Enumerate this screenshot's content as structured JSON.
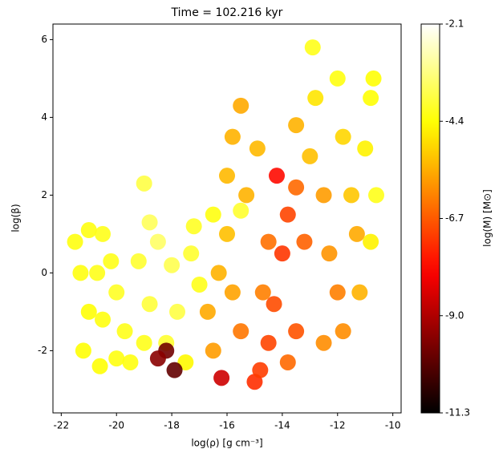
{
  "chart_data": {
    "type": "scatter",
    "title": "Time = 102.216 kyr",
    "x_label": "log(ρ) [g cm⁻³]",
    "y_label": "log(β)",
    "colorbar_label": "log(M) [M⊙]",
    "colormap": "hot",
    "xlim": [
      -22.3,
      -9.7
    ],
    "ylim": [
      -3.6,
      6.4
    ],
    "xticks": [
      -22,
      -20,
      -18,
      -16,
      -14,
      -12,
      -10
    ],
    "yticks": [
      -2,
      0,
      2,
      4,
      6
    ],
    "clim": [
      -11.3,
      -2.1
    ],
    "cticks": [
      -2.1,
      -4.4,
      -6.7,
      {
        "value": -9.0,
        "label": "-9.0"
      },
      -11.3
    ],
    "x": [
      -21.5,
      -21.0,
      -20.5,
      -21.3,
      -20.7,
      -20.2,
      -21.0,
      -20.5,
      -21.2,
      -20.6,
      -20.0,
      -19.7,
      -20.0,
      -19.5,
      -19.0,
      -18.8,
      -19.2,
      -18.5,
      -18.8,
      -18.0,
      -17.8,
      -18.2,
      -17.5,
      -17.3,
      -17.0,
      -17.2,
      -19.0,
      -16.5,
      -15.5,
      -18.2,
      -17.9,
      -18.5,
      -16.7,
      -16.5,
      -16.3,
      -16.0,
      -16.0,
      -15.8,
      -15.5,
      -15.8,
      -15.5,
      -16.2,
      -15.3,
      -14.9,
      -14.7,
      -15.0,
      -14.5,
      -14.3,
      -14.0,
      -13.8,
      -14.2,
      -13.5,
      -14.8,
      -13.2,
      -13.5,
      -14.5,
      -13.8,
      -13.0,
      -12.8,
      -12.5,
      -12.3,
      -12.0,
      -12.5,
      -11.8,
      -11.5,
      -11.3,
      -11.0,
      -10.8,
      -10.6,
      -10.7,
      -11.8,
      -11.2,
      -10.8,
      -12.9,
      -13.5,
      -12.0
    ],
    "y": [
      0.8,
      1.1,
      1.0,
      0.0,
      0.0,
      0.3,
      -1.0,
      -1.2,
      -2.0,
      -2.4,
      -2.2,
      -1.5,
      -0.5,
      -2.3,
      -1.8,
      -0.8,
      0.3,
      0.8,
      1.3,
      0.2,
      -1.0,
      -1.8,
      -2.3,
      0.5,
      -0.3,
      1.2,
      2.3,
      1.5,
      1.6,
      -2.0,
      -2.5,
      -2.2,
      -1.0,
      -2.0,
      0.0,
      1.0,
      2.5,
      3.5,
      4.3,
      -0.5,
      -1.5,
      -2.7,
      2.0,
      3.2,
      -0.5,
      -2.8,
      -1.8,
      -0.8,
      0.5,
      1.5,
      2.5,
      -1.5,
      -2.5,
      0.8,
      2.2,
      0.8,
      -2.3,
      3.0,
      4.5,
      2.0,
      0.5,
      -0.5,
      -1.8,
      3.5,
      2.0,
      1.0,
      3.2,
      4.5,
      2.0,
      5.0,
      -1.5,
      -0.5,
      0.8,
      5.8,
      3.8,
      5.0
    ],
    "c": [
      -4.3,
      -4.3,
      -4.2,
      -4.3,
      -4.2,
      -4.2,
      -4.4,
      -4.3,
      -4.4,
      -4.4,
      -4.3,
      -4.2,
      -4.1,
      -4.3,
      -4.2,
      -3.9,
      -4.0,
      -3.5,
      -3.6,
      -3.7,
      -3.8,
      -4.0,
      -4.5,
      -4.0,
      -4.2,
      -4.1,
      -3.8,
      -4.3,
      -4.0,
      -9.8,
      -10.0,
      -9.5,
      -5.6,
      -5.8,
      -5.5,
      -5.3,
      -5.4,
      -5.5,
      -5.6,
      -5.7,
      -6.3,
      -8.6,
      -5.5,
      -5.4,
      -6.2,
      -7.3,
      -7.0,
      -6.9,
      -7.2,
      -7.0,
      -7.8,
      -6.8,
      -7.1,
      -6.6,
      -6.5,
      -6.4,
      -6.5,
      -5.3,
      -4.8,
      -5.8,
      -5.9,
      -6.2,
      -6.0,
      -5.0,
      -5.2,
      -5.6,
      -4.6,
      -4.4,
      -4.2,
      -4.4,
      -6.0,
      -5.5,
      -4.6,
      -4.2,
      -5.5,
      -4.3
    ]
  }
}
